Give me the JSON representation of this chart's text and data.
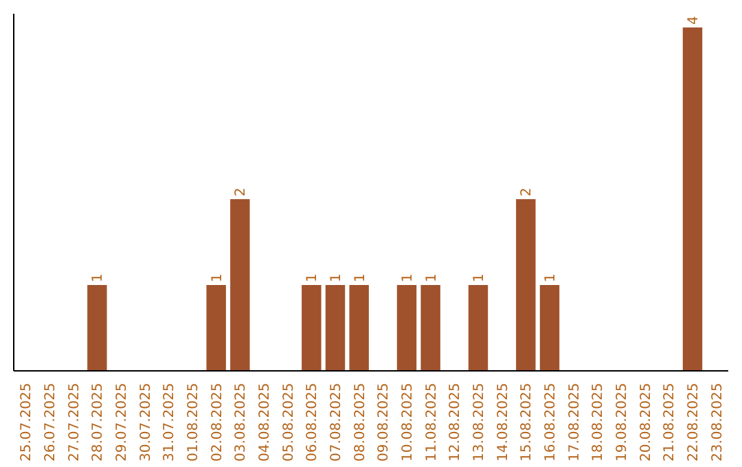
{
  "chart_data": {
    "type": "bar",
    "categories": [
      "25.07.2025",
      "26.07.2025",
      "27.07.2025",
      "28.07.2025",
      "29.07.2025",
      "30.07.2025",
      "31.07.2025",
      "01.08.2025",
      "02.08.2025",
      "03.08.2025",
      "04.08.2025",
      "05.08.2025",
      "06.08.2025",
      "07.08.2025",
      "08.08.2025",
      "09.08.2025",
      "10.08.2025",
      "11.08.2025",
      "12.08.2025",
      "13.08.2025",
      "14.08.2025",
      "15.08.2025",
      "16.08.2025",
      "17.08.2025",
      "18.08.2025",
      "19.08.2025",
      "20.08.2025",
      "21.08.2025",
      "22.08.2025",
      "23.08.2025"
    ],
    "values": [
      0,
      0,
      0,
      1,
      0,
      0,
      0,
      0,
      1,
      2,
      0,
      0,
      1,
      1,
      1,
      0,
      1,
      1,
      0,
      1,
      0,
      2,
      1,
      0,
      0,
      0,
      0,
      0,
      4,
      0
    ],
    "value_labels": [
      null,
      null,
      null,
      "1",
      null,
      null,
      null,
      null,
      "1",
      "2",
      null,
      null,
      "1",
      "1",
      "1",
      null,
      "1",
      "1",
      null,
      "1",
      null,
      "2",
      "1",
      null,
      null,
      null,
      null,
      null,
      "4",
      null
    ],
    "color": "#a0522d",
    "ylim": [
      0,
      4
    ]
  }
}
